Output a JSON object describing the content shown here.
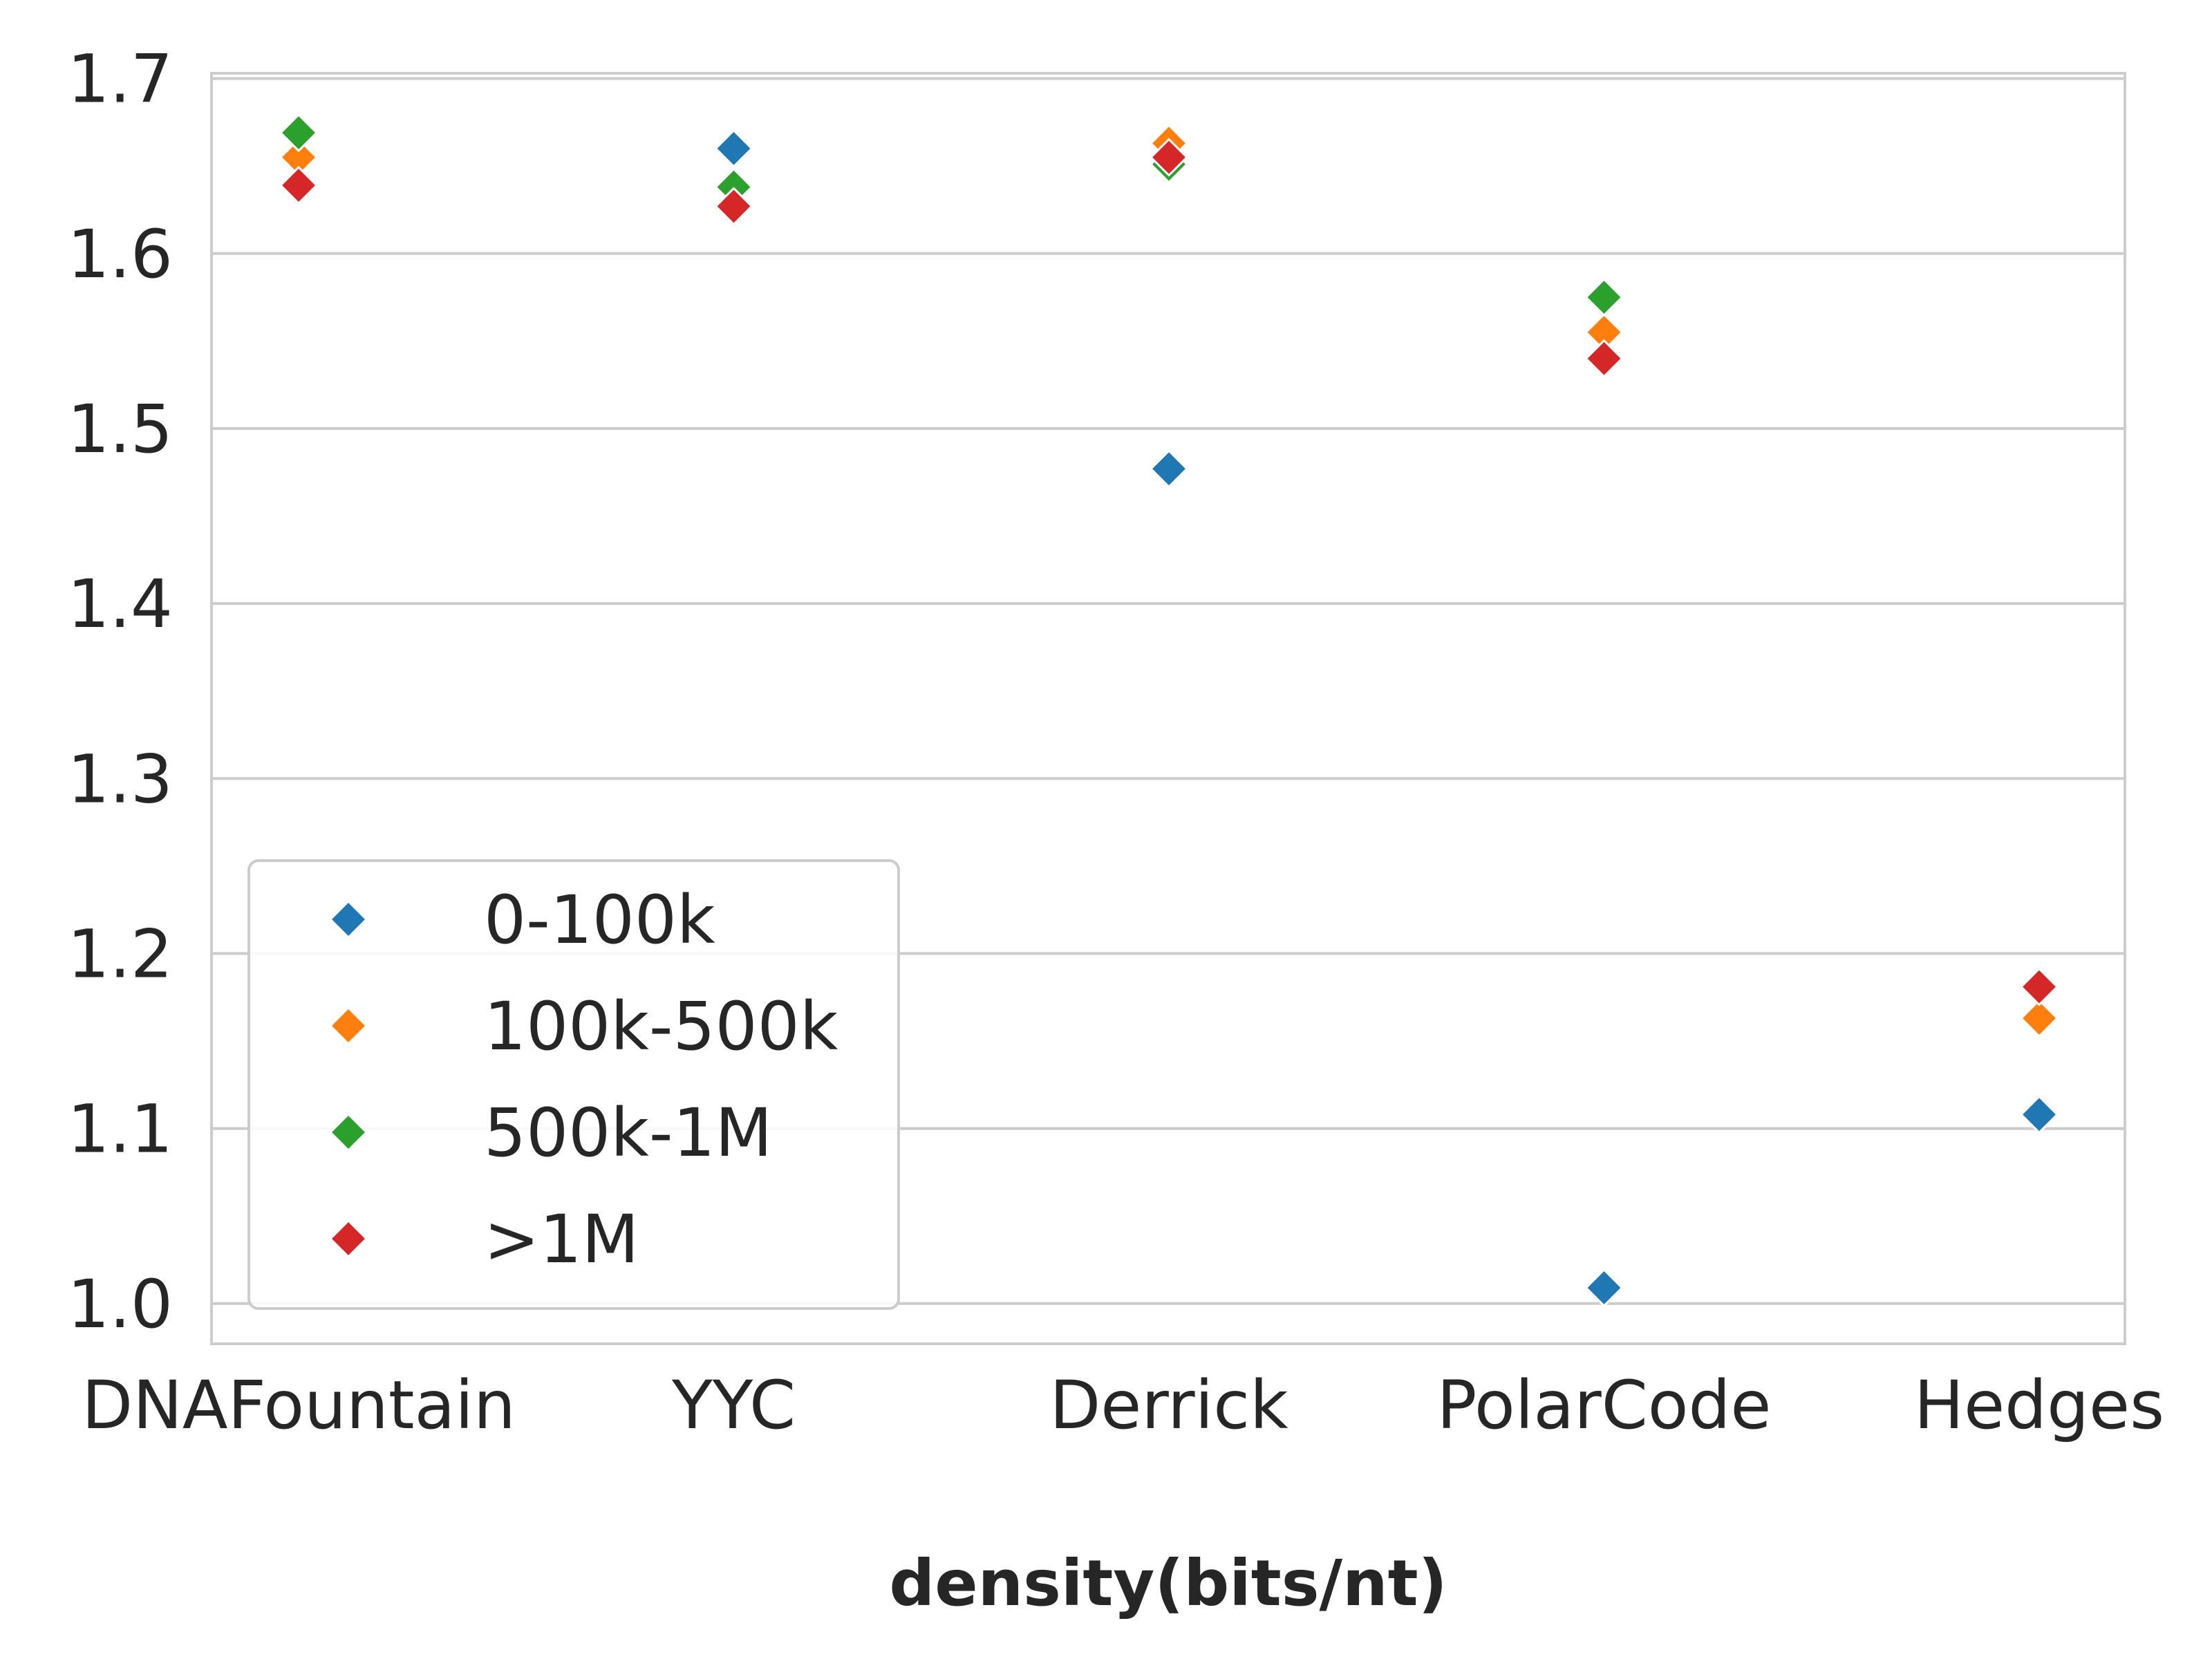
{
  "chart_data": {
    "type": "scatter",
    "title": "",
    "xlabel": "density(bits/nt)",
    "ylabel": "",
    "categories": [
      "DNAFountain",
      "YYC",
      "Derrick",
      "PolarCode",
      "Hedges"
    ],
    "ylim": [
      0.977,
      1.703
    ],
    "yticks": [
      1.0,
      1.1,
      1.2,
      1.3,
      1.4,
      1.5,
      1.6,
      1.7
    ],
    "ytick_labels": [
      "1.0",
      "1.1",
      "1.2",
      "1.3",
      "1.4",
      "1.5",
      "1.6",
      "1.7"
    ],
    "grid": "horizontal",
    "marker": "diamond",
    "legend": {
      "placement": "lower-left",
      "entries": [
        "0-100k",
        "100k-500k",
        "500k-1M",
        ">1M"
      ]
    },
    "series": [
      {
        "name": "0-100k",
        "color": "#1f77b4",
        "values": [
          null,
          1.66,
          1.477,
          1.009,
          1.108
        ]
      },
      {
        "name": "100k-500k",
        "color": "#ff7f0e",
        "values": [
          1.655,
          null,
          1.663,
          1.555,
          1.163
        ]
      },
      {
        "name": "500k-1M",
        "color": "#2ca02c",
        "values": [
          1.669,
          1.638,
          1.651,
          1.575,
          null
        ]
      },
      {
        "name": ">1M",
        "color": "#d62728",
        "values": [
          1.639,
          1.627,
          1.655,
          1.54,
          1.181
        ]
      }
    ]
  }
}
